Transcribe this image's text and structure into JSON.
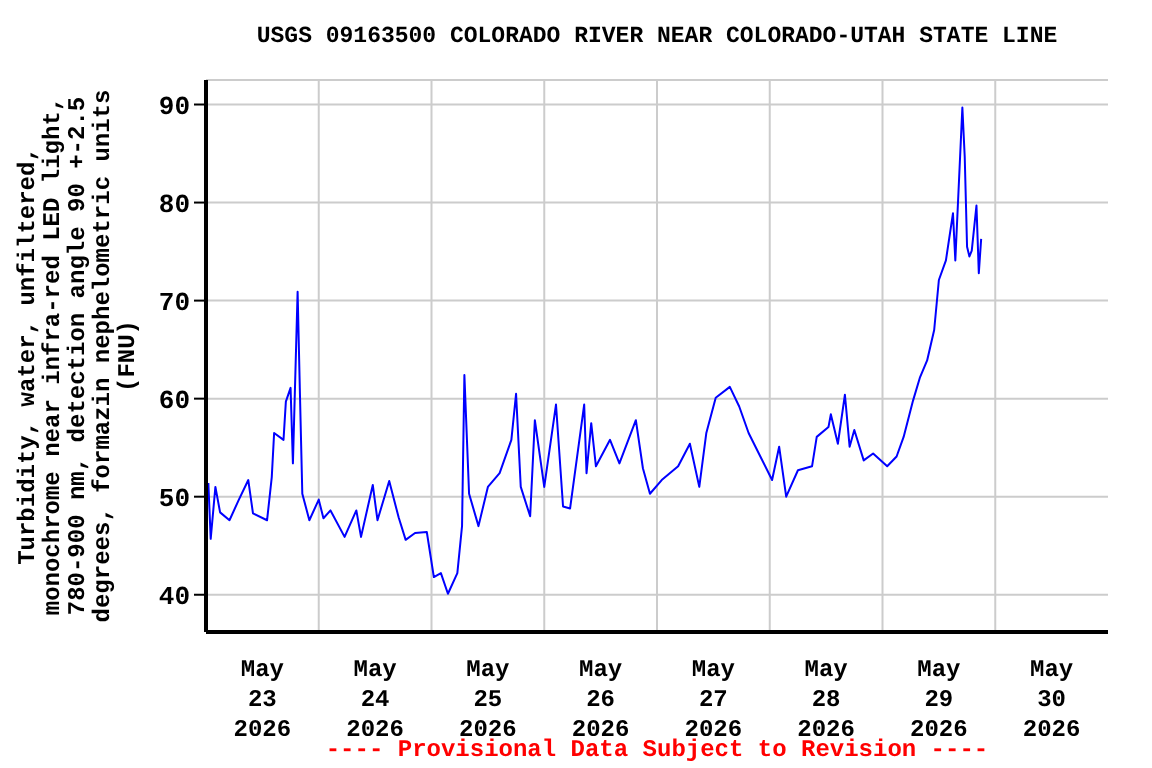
{
  "chart_data": {
    "type": "line",
    "title": "USGS 09163500 COLORADO RIVER NEAR COLORADO-UTAH STATE LINE",
    "ylabel": "Turbidity, water, unfiltered,\nmonochrome near infra-red LED light,\n780-900 nm, detection angle 90 +-2.5\ndegrees, formazin nephelometric units\n(FNU)",
    "annotations": [
      "---- Provisional Data Subject to Revision ----"
    ],
    "xlim": [
      "2026-05-23T00:00",
      "2026-05-31T00:00"
    ],
    "xticks": [
      {
        "value": "2026-05-23T12:00",
        "label": "May\n23\n2026"
      },
      {
        "value": "2026-05-24",
        "label": null
      },
      {
        "value": "2026-05-24T12:00",
        "label": "May\n24\n2026"
      },
      {
        "value": "2026-05-25",
        "label": null
      },
      {
        "value": "2026-05-25T12:00",
        "label": "May\n25\n2026"
      },
      {
        "value": "2026-05-26",
        "label": null
      },
      {
        "value": "2026-05-26T12:00",
        "label": "May\n26\n2026"
      },
      {
        "value": "2026-05-27",
        "label": null
      },
      {
        "value": "2026-05-27T12:00",
        "label": "May\n27\n2026"
      },
      {
        "value": "2026-05-28",
        "label": null
      },
      {
        "value": "2026-05-28T12:00",
        "label": "May\n28\n2026"
      },
      {
        "value": "2026-05-29",
        "label": null
      },
      {
        "value": "2026-05-29T12:00",
        "label": "May\n29\n2026"
      },
      {
        "value": "2026-05-30",
        "label": null
      },
      {
        "value": "2026-05-30T12:00",
        "label": "May\n30\n2026"
      }
    ],
    "ylim": [
      36.2,
      92.5
    ],
    "yticks": [
      40,
      50,
      60,
      70,
      80,
      90
    ],
    "grid": true,
    "legend": false,
    "marker": "none",
    "line_style": "solid",
    "x": [
      "2026-05-23T00:30",
      "2026-05-23T01:00",
      "2026-05-23T02:00",
      "2026-05-23T03:00",
      "2026-05-23T05:00",
      "2026-05-23T07:00",
      "2026-05-23T09:00",
      "2026-05-23T10:00",
      "2026-05-23T13:00",
      "2026-05-23T14:00",
      "2026-05-23T14:30",
      "2026-05-23T16:30",
      "2026-05-23T17:00",
      "2026-05-23T18:00",
      "2026-05-23T18:30",
      "2026-05-23T19:30",
      "2026-05-23T20:00",
      "2026-05-23T20:30",
      "2026-05-23T22:00",
      "2026-05-24T00:00",
      "2026-05-24T01:00",
      "2026-05-24T02:30",
      "2026-05-24T05:30",
      "2026-05-24T08:00",
      "2026-05-24T09:00",
      "2026-05-24T11:30",
      "2026-05-24T12:30",
      "2026-05-24T15:00",
      "2026-05-24T17:00",
      "2026-05-24T18:30",
      "2026-05-24T20:30",
      "2026-05-24T23:00",
      "2026-05-25T00:30",
      "2026-05-25T02:00",
      "2026-05-25T03:30",
      "2026-05-25T05:30",
      "2026-05-25T06:30",
      "2026-05-25T07:00",
      "2026-05-25T08:00",
      "2026-05-25T10:00",
      "2026-05-25T12:00",
      "2026-05-25T14:30",
      "2026-05-25T17:00",
      "2026-05-25T18:00",
      "2026-05-25T19:00",
      "2026-05-25T21:00",
      "2026-05-25T22:00",
      "2026-05-26T00:00",
      "2026-05-26T02:30",
      "2026-05-26T04:00",
      "2026-05-26T05:30",
      "2026-05-26T08:30",
      "2026-05-26T09:00",
      "2026-05-26T10:00",
      "2026-05-26T11:00",
      "2026-05-26T14:00",
      "2026-05-26T16:00",
      "2026-05-26T19:30",
      "2026-05-26T21:00",
      "2026-05-26T22:30",
      "2026-05-27T01:00",
      "2026-05-27T04:30",
      "2026-05-27T07:00",
      "2026-05-27T09:00",
      "2026-05-27T10:30",
      "2026-05-27T12:30",
      "2026-05-27T15:30",
      "2026-05-27T17:30",
      "2026-05-27T19:30",
      "2026-05-27T22:00",
      "2026-05-28T00:30",
      "2026-05-28T02:00",
      "2026-05-28T03:30",
      "2026-05-28T06:00",
      "2026-05-28T09:00",
      "2026-05-28T10:00",
      "2026-05-28T12:30",
      "2026-05-28T13:00",
      "2026-05-28T14:30",
      "2026-05-28T16:00",
      "2026-05-28T17:00",
      "2026-05-28T18:00",
      "2026-05-28T20:00",
      "2026-05-28T22:00",
      "2026-05-29T01:00",
      "2026-05-29T03:00",
      "2026-05-29T04:30",
      "2026-05-29T06:30",
      "2026-05-29T08:00",
      "2026-05-29T09:30",
      "2026-05-29T11:00",
      "2026-05-29T12:00",
      "2026-05-29T13:30",
      "2026-05-29T15:00",
      "2026-05-29T15:30",
      "2026-05-29T17:00",
      "2026-05-29T17:30",
      "2026-05-29T18:00",
      "2026-05-29T18:30",
      "2026-05-29T19:00",
      "2026-05-29T20:00",
      "2026-05-29T20:30",
      "2026-05-29T21:00"
    ],
    "series": [
      {
        "color": "#0000ff",
        "values": [
          51.4,
          45.7,
          51,
          48.4,
          47.6,
          49.7,
          51.7,
          48.3,
          47.6,
          52,
          56.5,
          55.8,
          59.7,
          61.1,
          53.4,
          70.9,
          60.4,
          50.3,
          47.6,
          49.7,
          47.8,
          48.6,
          45.9,
          48.6,
          45.9,
          51.2,
          47.6,
          51.6,
          47.9,
          45.6,
          46.3,
          46.4,
          41.8,
          42.2,
          40.1,
          42.2,
          47,
          62.4,
          50.3,
          47,
          51,
          52.4,
          55.8,
          60.5,
          51,
          48,
          57.8,
          51,
          59.4,
          49,
          48.8,
          59.4,
          52.4,
          57.5,
          53.1,
          55.8,
          53.4,
          57.8,
          52.9,
          50.3,
          51.7,
          53.1,
          55.4,
          51,
          56.5,
          60.1,
          61.2,
          59.2,
          56.5,
          54.1,
          51.7,
          55.1,
          50,
          52.7,
          53.1,
          56.1,
          57.1,
          58.4,
          55.4,
          60.4,
          55.1,
          56.8,
          53.7,
          54.4,
          53.1,
          54.1,
          56.1,
          59.8,
          62.2,
          63.9,
          67,
          72.1,
          74.1,
          78.9,
          74.1,
          89.7,
          84.7,
          75.5,
          74.5,
          75.1,
          79.7,
          72.8,
          76.3
        ]
      }
    ]
  }
}
